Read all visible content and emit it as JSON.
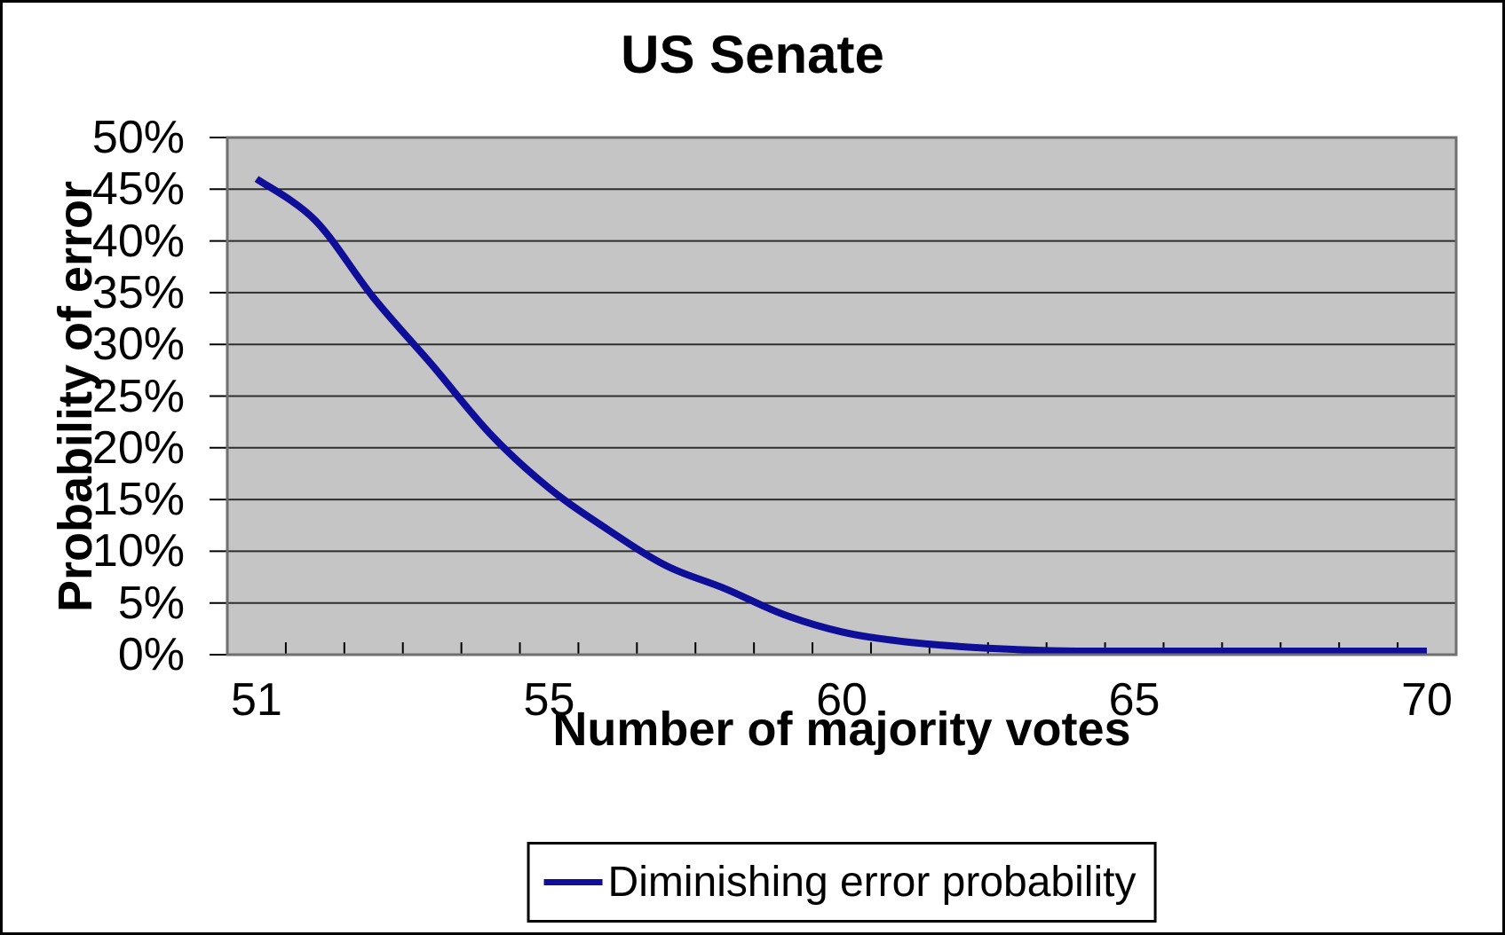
{
  "chart": {
    "title": "US Senate",
    "y_axis": {
      "title": "Probability of error",
      "tick_labels": [
        "50%",
        "45%",
        "40%",
        "35%",
        "30%",
        "25%",
        "20%",
        "15%",
        "10%",
        "5%",
        "0%"
      ],
      "min": 0,
      "max": 50,
      "step": 5
    },
    "x_axis": {
      "title": "Number of majority votes",
      "tick_labels": [
        "51",
        "55",
        "60",
        "65",
        "70"
      ],
      "label_category_indices": [
        0,
        5,
        10,
        15,
        20
      ],
      "n_categories": 21
    },
    "legend": {
      "label": "Diminishing error probability"
    },
    "colors": {
      "line": "#0e0e99",
      "plot_bg": "#c5c5c5",
      "grid": "#2e2e2e",
      "tick": "#000000",
      "plot_border": "#6f6f6f",
      "text": "#000000",
      "page_bg": "#ffffff",
      "outer_border": "#000000",
      "legend_border": "#000000"
    }
  },
  "chart_data": {
    "type": "line",
    "title": "US Senate",
    "xlabel": "Number of majority votes",
    "ylabel": "Probability of error",
    "x_tick_labels": [
      "51",
      "55",
      "60",
      "65",
      "70"
    ],
    "x_range": [
      51,
      70
    ],
    "ylim": [
      0,
      50
    ],
    "y_unit": "percent",
    "y_tick_step": 5,
    "grid": "horizontal",
    "legend_position": "bottom-center",
    "line_style": "smooth",
    "n_points": 21,
    "series": [
      {
        "name": "Diminishing error probability",
        "values_percent": [
          46,
          42,
          34.5,
          28,
          21.3,
          16.1,
          12.1,
          8.6,
          6.4,
          3.9,
          2.2,
          1.3,
          0.8,
          0.5,
          0.3,
          0.2,
          0.12,
          0.08,
          0.05,
          0.02,
          0
        ]
      }
    ]
  }
}
